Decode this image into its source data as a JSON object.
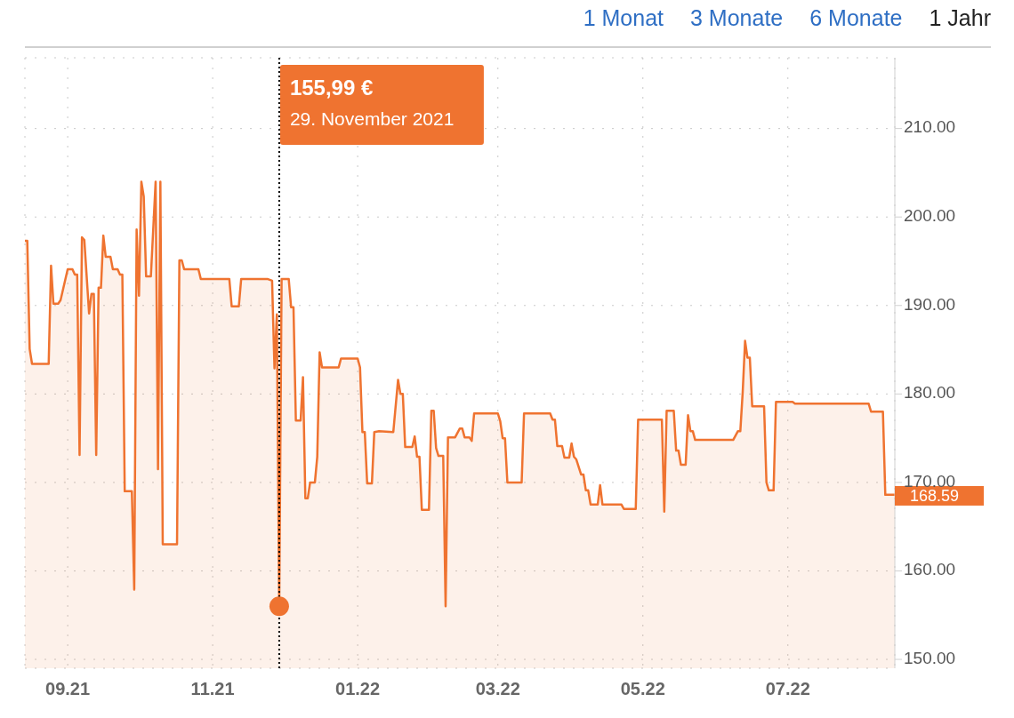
{
  "chart_data": {
    "type": "area",
    "annotations": [
      "1 Monat",
      "3 Monate",
      "6 Monate",
      "1 Jahr",
      "155,99 €",
      "29. November 2021",
      {
        "text": "168.59",
        "x": "2022-08-15",
        "y": 168.59
      }
    ],
    "x": [
      "2021-08-14",
      "2021-08-15",
      "2021-08-16",
      "2021-08-17",
      "2021-08-24",
      "2021-08-25",
      "2021-08-26",
      "2021-08-28",
      "2021-08-29",
      "2021-09-01",
      "2021-09-03",
      "2021-09-04",
      "2021-09-05",
      "2021-09-06",
      "2021-09-07",
      "2021-09-08",
      "2021-09-10",
      "2021-09-11",
      "2021-09-12",
      "2021-09-13",
      "2021-09-14",
      "2021-09-15",
      "2021-09-16",
      "2021-09-17",
      "2021-09-19",
      "2021-09-20",
      "2021-09-22",
      "2021-09-23",
      "2021-09-24",
      "2021-09-25",
      "2021-09-28",
      "2021-09-29",
      "2021-09-30",
      "2021-10-01",
      "2021-10-02",
      "2021-10-03",
      "2021-10-04",
      "2021-10-06",
      "2021-10-08",
      "2021-10-09",
      "2021-10-10",
      "2021-10-11",
      "2021-10-17",
      "2021-10-18",
      "2021-10-19",
      "2021-10-20",
      "2021-10-26",
      "2021-10-27",
      "2021-11-08",
      "2021-11-09",
      "2021-11-12",
      "2021-11-13",
      "2021-11-24",
      "2021-11-26",
      "2021-11-27",
      "2021-11-28",
      "2021-11-29",
      "2021-11-30",
      "2021-12-03",
      "2021-12-04",
      "2021-12-05",
      "2021-12-06",
      "2021-12-08",
      "2021-12-09",
      "2021-12-10",
      "2021-12-11",
      "2021-12-12",
      "2021-12-14",
      "2021-12-15",
      "2021-12-16",
      "2021-12-17",
      "2021-12-24",
      "2021-12-25",
      "2022-01-01",
      "2022-01-02",
      "2022-01-03",
      "2022-01-04",
      "2022-01-05",
      "2022-01-07",
      "2022-01-08",
      "2022-01-10",
      "2022-01-16",
      "2022-01-18",
      "2022-01-19",
      "2022-01-20",
      "2022-01-21",
      "2022-01-24",
      "2022-01-25",
      "2022-01-26",
      "2022-01-27",
      "2022-01-28",
      "2022-01-31",
      "2022-02-01",
      "2022-02-02",
      "2022-02-03",
      "2022-02-04",
      "2022-02-06",
      "2022-02-07",
      "2022-02-08",
      "2022-02-11",
      "2022-02-13",
      "2022-02-14",
      "2022-02-15",
      "2022-02-17",
      "2022-02-18",
      "2022-02-19",
      "2022-03-01",
      "2022-03-02",
      "2022-03-03",
      "2022-03-04",
      "2022-03-05",
      "2022-03-11",
      "2022-03-12",
      "2022-03-23",
      "2022-03-24",
      "2022-03-25",
      "2022-03-26",
      "2022-03-28",
      "2022-03-29",
      "2022-03-31",
      "2022-04-01",
      "2022-04-02",
      "2022-04-03",
      "2022-04-05",
      "2022-04-06",
      "2022-04-07",
      "2022-04-08",
      "2022-04-09",
      "2022-04-12",
      "2022-04-13",
      "2022-04-14",
      "2022-04-22",
      "2022-04-23",
      "2022-04-28",
      "2022-04-29",
      "2022-05-09",
      "2022-05-10",
      "2022-05-11",
      "2022-05-14",
      "2022-05-15",
      "2022-05-16",
      "2022-05-17",
      "2022-05-19",
      "2022-05-20",
      "2022-05-21",
      "2022-05-22",
      "2022-05-23",
      "2022-06-08",
      "2022-06-10",
      "2022-06-11",
      "2022-06-12",
      "2022-06-13",
      "2022-06-14",
      "2022-06-15",
      "2022-06-16",
      "2022-06-21",
      "2022-06-22",
      "2022-06-23",
      "2022-06-25",
      "2022-06-26",
      "2022-07-03",
      "2022-07-04",
      "2022-08-04",
      "2022-08-05",
      "2022-08-10",
      "2022-08-11",
      "2022-08-15"
    ],
    "series": [
      {
        "color": "#ef7330",
        "values": [
          197.3,
          197.3,
          185.1,
          183.4,
          183.4,
          194.5,
          190.2,
          190.2,
          190.6,
          194.1,
          194.1,
          193.5,
          193.5,
          173.1,
          197.7,
          197.4,
          189.1,
          191.3,
          191.3,
          173.1,
          192.0,
          192.0,
          197.9,
          195.5,
          195.5,
          194.1,
          194.1,
          193.5,
          193.5,
          169.0,
          169.0,
          157.9,
          198.6,
          191.1,
          204.0,
          202.3,
          193.3,
          193.3,
          204.0,
          171.5,
          204.0,
          163.0,
          163.0,
          195.1,
          195.1,
          194.1,
          194.1,
          193.0,
          193.0,
          189.9,
          189.9,
          193.0,
          193.0,
          192.8,
          182.9,
          189.0,
          156.0,
          193.0,
          193.0,
          189.8,
          189.8,
          177.0,
          177.0,
          181.9,
          168.2,
          168.2,
          170.0,
          170.0,
          172.9,
          184.7,
          183.0,
          183.0,
          184.0,
          184.0,
          183.0,
          175.7,
          175.7,
          169.9,
          169.9,
          175.7,
          175.8,
          175.7,
          181.6,
          180.0,
          180.0,
          174.0,
          174.0,
          175.2,
          172.9,
          172.9,
          166.9,
          166.9,
          178.1,
          178.1,
          173.9,
          173.0,
          173.0,
          156.0,
          175.1,
          175.1,
          176.1,
          176.1,
          175.1,
          175.1,
          174.7,
          177.8,
          177.8,
          176.9,
          175.0,
          175.0,
          170.0,
          170.0,
          177.8,
          177.8,
          177.1,
          177.1,
          174.1,
          174.1,
          172.8,
          172.8,
          174.4,
          172.9,
          172.6,
          170.9,
          170.9,
          169.1,
          169.1,
          167.5,
          167.5,
          169.7,
          167.5,
          167.5,
          167.0,
          167.0,
          177.1,
          177.1,
          166.7,
          178.1,
          178.1,
          173.6,
          173.6,
          172.0,
          172.0,
          177.6,
          175.8,
          175.8,
          174.8,
          174.8,
          175.8,
          175.8,
          180.2,
          186.0,
          184.1,
          184.1,
          178.6,
          178.6,
          170.0,
          169.1,
          169.1,
          179.1,
          179.1,
          178.9,
          178.9,
          178.0,
          178.0,
          168.6,
          168.6
        ]
      }
    ],
    "xlim": [
      "2021-08-14",
      "2022-08-15"
    ],
    "xticks": [
      {
        "value": "2021-09-01",
        "label": "09.21"
      },
      {
        "value": "2021-11-01",
        "label": "11.21"
      },
      {
        "value": "2022-01-01",
        "label": "01.22"
      },
      {
        "value": "2022-03-01",
        "label": "03.22"
      },
      {
        "value": "2022-05-01",
        "label": "05.22"
      },
      {
        "value": "2022-07-01",
        "label": "07.22"
      }
    ],
    "ylim": [
      149,
      218
    ],
    "yticks": [
      {
        "value": 150,
        "label": "150.00"
      },
      {
        "value": 160,
        "label": "160.00"
      },
      {
        "value": 170,
        "label": "170.00"
      },
      {
        "value": 180,
        "label": "180.00"
      },
      {
        "value": 190,
        "label": "190.00"
      },
      {
        "value": 200,
        "label": "200.00"
      },
      {
        "value": 210,
        "label": "210.00"
      }
    ],
    "grid": true,
    "ref_lines": [
      {
        "axis": "x",
        "value": "2021-11-29",
        "color": "#000000",
        "line_style": "dotted"
      }
    ]
  }
}
